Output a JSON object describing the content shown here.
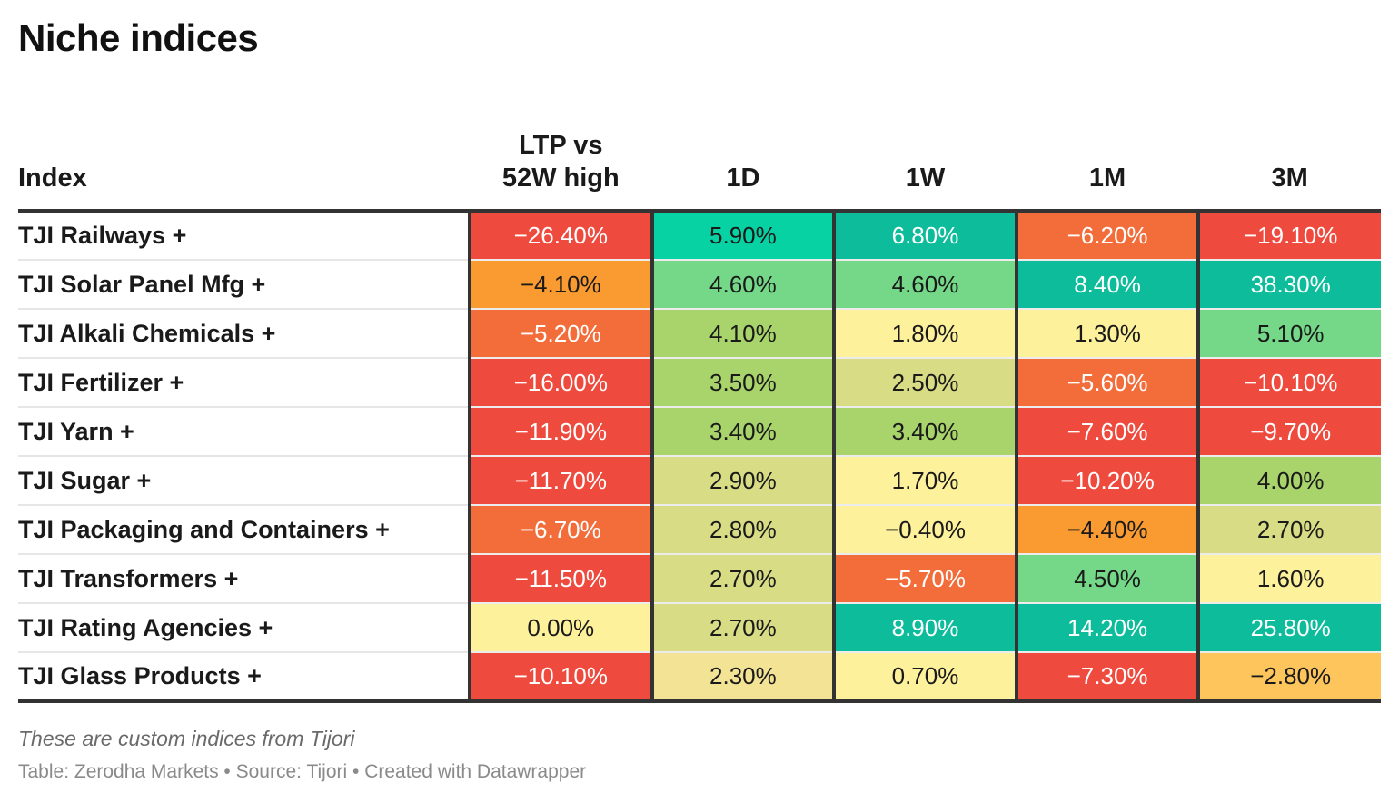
{
  "title": "Niche indices",
  "footer": {
    "note": "These are custom indices from Tijori",
    "credit": "Table: Zerodha Markets • Source: Tijori • Created with Datawrapper"
  },
  "chart_data": {
    "type": "table",
    "title": "Niche indices",
    "columns": [
      {
        "key": "index",
        "label_lines": [
          "Index"
        ]
      },
      {
        "key": "ltp_vs_52w_high",
        "label_lines": [
          "LTP vs",
          "52W high"
        ]
      },
      {
        "key": "d1",
        "label_lines": [
          "1D"
        ]
      },
      {
        "key": "w1",
        "label_lines": [
          "1W"
        ]
      },
      {
        "key": "m1",
        "label_lines": [
          "1M"
        ]
      },
      {
        "key": "m3",
        "label_lines": [
          "3M"
        ]
      }
    ],
    "rows": [
      {
        "index": "TJI Railways +",
        "values": [
          -26.4,
          5.9,
          6.8,
          -6.2,
          -19.1
        ]
      },
      {
        "index": "TJI Solar Panel Mfg +",
        "values": [
          -4.1,
          4.6,
          4.6,
          8.4,
          38.3
        ]
      },
      {
        "index": "TJI Alkali Chemicals +",
        "values": [
          -5.2,
          4.1,
          1.8,
          1.3,
          5.1
        ]
      },
      {
        "index": "TJI Fertilizer +",
        "values": [
          -16.0,
          3.5,
          2.5,
          -5.6,
          -10.1
        ]
      },
      {
        "index": "TJI Yarn +",
        "values": [
          -11.9,
          3.4,
          3.4,
          -7.6,
          -9.7
        ]
      },
      {
        "index": "TJI Sugar +",
        "values": [
          -11.7,
          2.9,
          1.7,
          -10.2,
          4.0
        ]
      },
      {
        "index": "TJI Packaging and Containers +",
        "values": [
          -6.7,
          2.8,
          -0.4,
          -4.4,
          2.7
        ]
      },
      {
        "index": "TJI Transformers +",
        "values": [
          -11.5,
          2.7,
          -5.7,
          4.5,
          1.6
        ]
      },
      {
        "index": "TJI Rating Agencies +",
        "values": [
          0.0,
          2.7,
          8.9,
          14.2,
          25.8
        ]
      },
      {
        "index": "TJI Glass Products +",
        "values": [
          -10.1,
          2.3,
          0.7,
          -7.3,
          -2.8
        ]
      }
    ],
    "color_scale": {
      "very_negative": "#ee4b3e",
      "negative": "#f26d3a",
      "mild_negative": "#f99b30",
      "slight_negative": "#fdc55c",
      "neutral": "#fef19b",
      "slight_positive": "#f3e394",
      "mild_positive": "#d8dd85",
      "positive": "#a9d46c",
      "strong_positive": "#74d888",
      "very_positive": "#0cbc9a",
      "top_positive": "#06d2a3",
      "light_text": "#ffffff",
      "dark_text": "#1a1a1a"
    }
  }
}
